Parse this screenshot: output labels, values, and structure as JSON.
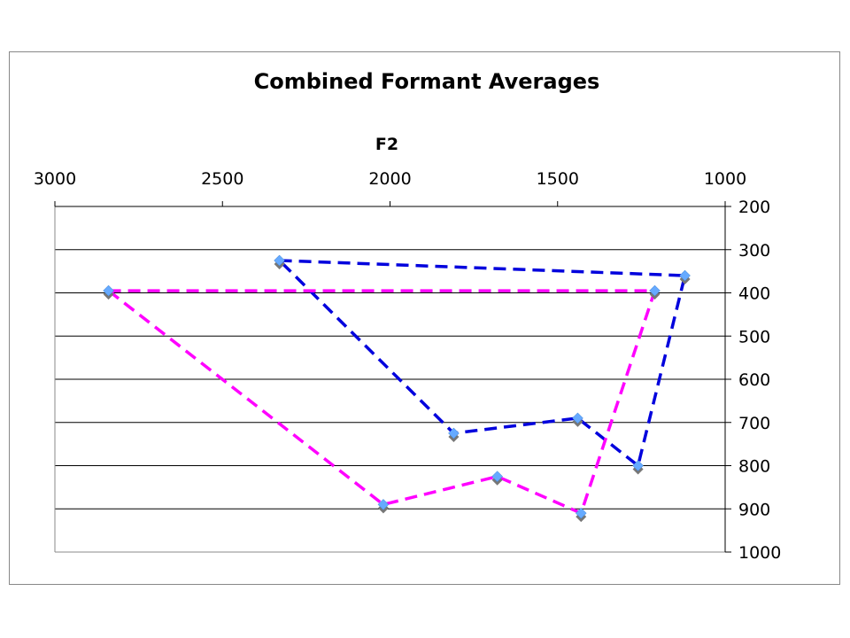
{
  "chart_data": {
    "type": "scatter",
    "title": "Combined Formant Averages",
    "xlabel": "F2",
    "ylabel": "",
    "x_axis_position": "top",
    "y_axis_position": "right",
    "x_reversed": true,
    "y_reversed": true,
    "xlim": [
      1000,
      3000
    ],
    "ylim": [
      200,
      1000
    ],
    "x_ticks": [
      3000,
      2500,
      2000,
      1500,
      1000
    ],
    "y_ticks": [
      200,
      300,
      400,
      500,
      600,
      700,
      800,
      900,
      1000
    ],
    "grid": "horizontal",
    "legend": "none",
    "series": [
      {
        "color": "#0000dd",
        "line": "dashed",
        "marker": "diamond",
        "points": [
          {
            "x": 2330,
            "y": 325
          },
          {
            "x": 1120,
            "y": 360
          },
          {
            "x": 1260,
            "y": 800
          },
          {
            "x": 1440,
            "y": 690
          },
          {
            "x": 1810,
            "y": 725
          },
          {
            "x": 2330,
            "y": 325
          }
        ]
      },
      {
        "color": "#ff00ff",
        "line": "dashed",
        "marker": "diamond",
        "points": [
          {
            "x": 2840,
            "y": 395
          },
          {
            "x": 1210,
            "y": 395
          },
          {
            "x": 1430,
            "y": 910
          },
          {
            "x": 1680,
            "y": 825
          },
          {
            "x": 2020,
            "y": 890
          },
          {
            "x": 2840,
            "y": 395
          }
        ]
      }
    ],
    "marker_fill": "#66aaff",
    "marker_shadow": "#777777"
  }
}
